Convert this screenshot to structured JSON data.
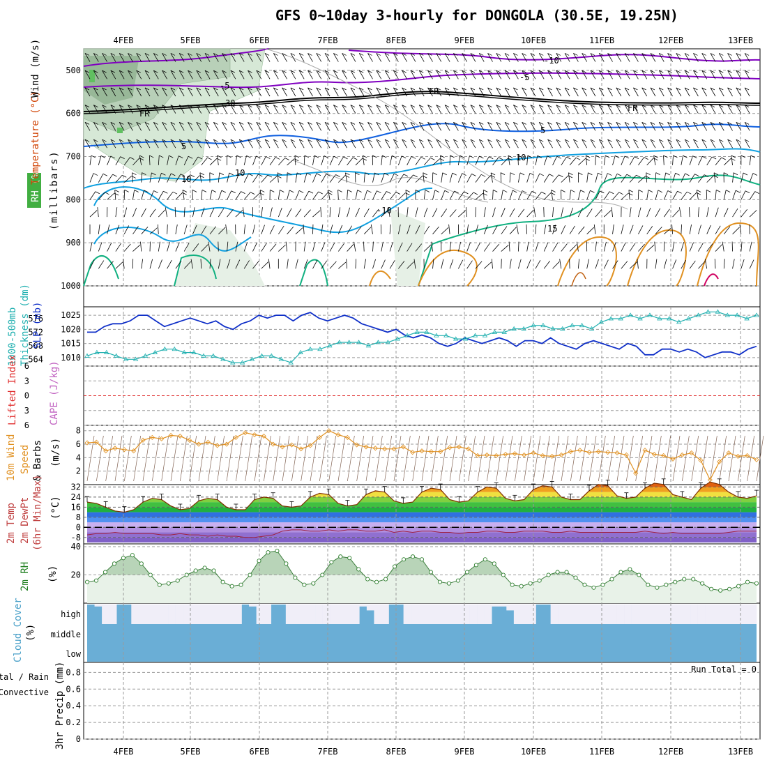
{
  "title": "GFS 0~10day 3-hourly for DONGOLA (30.5E, 19.25N)",
  "dates": [
    "4FEB",
    "5FEB",
    "6FEB",
    "7FEB",
    "8FEB",
    "9FEB",
    "10FEB",
    "11FEB",
    "12FEB",
    "13FEB"
  ],
  "colors": {
    "grid": "#999999",
    "wind_barb": "#000000",
    "fr": "#000000",
    "temp_neg": "#8000c0",
    "temp_pos": "#1060e0",
    "slp": "#1030c8",
    "thk": "#20b0b0",
    "wind10": "#e09020",
    "rh": "#208020",
    "cloud": "#6aaed6",
    "cloud_bg": "#f0eef8"
  },
  "chart_data": [
    {
      "type": "contour",
      "panel": "upper-air",
      "labels": {
        "wind": "Wind (m/s)",
        "temperature": "Temperature (°C)",
        "rh": "RH (%)",
        "y": "(millibars)"
      },
      "yticks": [
        500,
        600,
        700,
        800,
        900,
        1000
      ],
      "contour_labels": [
        {
          "text": "-10",
          "color": "#8000c0"
        },
        {
          "text": "-5",
          "color": "#8000c0"
        },
        {
          "text": "-5",
          "color": "#8000c0"
        },
        {
          "text": "FR",
          "color": "#000000"
        },
        {
          "text": "FR",
          "color": "#000000"
        },
        {
          "text": "FR",
          "color": "#000000"
        },
        {
          "text": "5",
          "color": "#1060e0"
        },
        {
          "text": "5",
          "color": "#1060e0"
        },
        {
          "text": "10",
          "color": "#10a0e0"
        },
        {
          "text": "10",
          "color": "#10a0e0"
        },
        {
          "text": "-10",
          "color": "#10a0e0"
        },
        {
          "text": "15",
          "color": "#10b080"
        },
        {
          "text": "30",
          "color": "#888888"
        },
        {
          "text": "10",
          "color": "#888888"
        }
      ]
    },
    {
      "type": "line",
      "panel": "slp-thickness",
      "labels": {
        "slp": "SLP (mb)",
        "thk": "Thickness (dm)",
        "thk2": "1000-500mb"
      },
      "y_slp_ticks": [
        1010,
        1015,
        1020,
        1025
      ],
      "y_thk_ticks": [
        564,
        568,
        572,
        576
      ],
      "series": [
        {
          "name": "SLP",
          "values": [
            1019,
            1019,
            1021,
            1022,
            1022,
            1023,
            1025,
            1025,
            1023,
            1021,
            1022,
            1023,
            1024,
            1023,
            1022,
            1023,
            1021,
            1020,
            1022,
            1023,
            1025,
            1024,
            1025,
            1025,
            1023,
            1025,
            1026,
            1024,
            1023,
            1024,
            1025,
            1024,
            1022,
            1021,
            1020,
            1019,
            1020,
            1018,
            1017,
            1018,
            1017,
            1015,
            1014,
            1015,
            1017,
            1016,
            1015,
            1016,
            1017,
            1016,
            1014,
            1016,
            1016,
            1015,
            1017,
            1015,
            1014,
            1013,
            1015,
            1016,
            1015,
            1014,
            1013,
            1015,
            1014,
            1011,
            1011,
            1013,
            1013,
            1012,
            1013,
            1012,
            1010,
            1011,
            1012,
            1012,
            1011,
            1013,
            1014
          ]
        },
        {
          "name": "Thickness",
          "values": [
            565,
            566,
            566,
            565,
            564,
            564,
            565,
            566,
            567,
            567,
            566,
            566,
            565,
            565,
            564,
            563,
            563,
            564,
            565,
            565,
            564,
            563,
            566,
            567,
            567,
            568,
            569,
            569,
            569,
            568,
            569,
            569,
            570,
            571,
            572,
            572,
            571,
            571,
            570,
            570,
            571,
            571,
            572,
            572,
            573,
            573,
            574,
            574,
            573,
            573,
            574,
            574,
            573,
            575,
            576,
            576,
            577,
            576,
            577,
            576,
            576,
            575,
            576,
            577,
            578,
            578,
            577,
            577,
            576,
            577
          ]
        }
      ]
    },
    {
      "type": "line",
      "panel": "cape-li",
      "labels": {
        "li": "Lifted Index",
        "cape": "CAPE (J/kg)"
      },
      "yticks": [
        -6,
        -3,
        0,
        3,
        6
      ],
      "series": [
        {
          "name": "Lifted Index",
          "values": [
            0
          ]
        }
      ]
    },
    {
      "type": "line",
      "panel": "wind10m",
      "labels": {
        "a": "10m Wind",
        "b": "Speed",
        "c": "& Barbs",
        "d": "(m/s)"
      },
      "yticks": [
        2,
        4,
        6,
        8
      ],
      "series": [
        {
          "name": "10m Wind Speed",
          "values": [
            6.2,
            6.3,
            5.0,
            5.4,
            5.2,
            5.0,
            6.6,
            7.0,
            6.8,
            7.3,
            7.2,
            6.6,
            6.0,
            6.3,
            5.8,
            6.0,
            7.0,
            7.7,
            7.4,
            7.2,
            6.0,
            5.6,
            5.9,
            5.3,
            5.8,
            7.0,
            8.0,
            7.4,
            7.0,
            5.9,
            5.6,
            5.4,
            5.3,
            5.3,
            5.6,
            4.8,
            5.0,
            4.9,
            4.9,
            5.5,
            5.6,
            5.3,
            4.3,
            4.4,
            4.3,
            4.5,
            4.6,
            4.4,
            4.7,
            4.3,
            4.2,
            4.4,
            4.9,
            5.1,
            4.8,
            4.9,
            4.8,
            4.7,
            4.4,
            1.7,
            5.1,
            4.5,
            4.3,
            3.8,
            4.4,
            4.7,
            3.6,
            0.7,
            3.4,
            4.7,
            4.2,
            4.3,
            3.7
          ]
        }
      ]
    },
    {
      "type": "area",
      "panel": "temp",
      "labels": {
        "a": "2m Temp",
        "b": "2m DewPt",
        "c": "(6hr Min/Max)",
        "d": "(°C)"
      },
      "yticks": [
        -8,
        0,
        8,
        16,
        24,
        32
      ],
      "series": [
        {
          "name": "2m Temp",
          "values": [
            20,
            19,
            16,
            13,
            12,
            14,
            20,
            23,
            22,
            17,
            14,
            15,
            21,
            23,
            22,
            16,
            14,
            14,
            22,
            24,
            23,
            17,
            16,
            17,
            24,
            27,
            26,
            19,
            17,
            18,
            26,
            29,
            28,
            21,
            19,
            20,
            28,
            31,
            30,
            22,
            20,
            21,
            28,
            32,
            31,
            23,
            21,
            22,
            30,
            33,
            32,
            24,
            22,
            22,
            29,
            34,
            33,
            25,
            23,
            24,
            31,
            35,
            34,
            26,
            24,
            22,
            31,
            36,
            34,
            28,
            24,
            23,
            25
          ]
        },
        {
          "name": "2m DewPt",
          "values": [
            -6,
            -5,
            -5,
            -4,
            -5,
            -5,
            -5,
            -5,
            -6,
            -6,
            -5,
            -6,
            -6,
            -7,
            -6,
            -7,
            -7,
            -8,
            -8,
            -7,
            -6,
            -3,
            -2,
            -2,
            -3,
            -3,
            -2,
            -3,
            -2,
            -2,
            -3,
            -3,
            -2,
            -4,
            -3,
            -4,
            -3,
            -3,
            -4,
            -4,
            -5,
            -4,
            -4,
            -3,
            -3,
            -4,
            -4,
            -3,
            -3,
            -3,
            -4,
            -4,
            -3,
            -4,
            -4,
            -4,
            -4,
            -4,
            -4,
            -4,
            -3,
            -4,
            -5,
            -4,
            -5,
            -5,
            -5,
            -5,
            -5,
            -4,
            -3,
            -3,
            -3
          ]
        }
      ]
    },
    {
      "type": "area",
      "panel": "rh2m",
      "labels": {
        "a": "2m RH",
        "b": "(%)"
      },
      "yticks": [
        20,
        40
      ],
      "series": [
        {
          "name": "2m RH",
          "values": [
            15,
            16,
            22,
            28,
            32,
            34,
            28,
            20,
            13,
            14,
            16,
            20,
            23,
            25,
            23,
            15,
            12,
            13,
            20,
            30,
            36,
            37,
            28,
            18,
            13,
            14,
            20,
            29,
            33,
            32,
            24,
            17,
            15,
            17,
            26,
            31,
            33,
            31,
            22,
            15,
            14,
            16,
            22,
            27,
            31,
            28,
            20,
            13,
            12,
            14,
            16,
            20,
            22,
            22,
            18,
            13,
            11,
            13,
            17,
            22,
            24,
            20,
            13,
            11,
            13,
            15,
            17,
            17,
            14,
            10,
            9,
            10,
            12,
            15,
            14
          ]
        }
      ]
    },
    {
      "type": "bar",
      "panel": "cloud",
      "labels": {
        "a": "Cloud Cover",
        "b": "(%)",
        "high": "high",
        "middle": "middle",
        "low": "low"
      },
      "series": [
        {
          "name": "High cloud",
          "values": [
            100,
            90,
            0,
            0,
            100,
            100,
            0,
            0,
            0,
            0,
            0,
            0,
            0,
            0,
            0,
            0,
            0,
            0,
            0,
            0,
            0,
            100,
            90,
            0,
            0,
            100,
            100,
            0,
            0,
            0,
            0,
            0,
            0,
            0,
            0,
            0,
            0,
            90,
            70,
            0,
            0,
            100,
            100,
            0,
            0,
            0,
            0,
            0,
            0,
            0,
            0,
            0,
            0,
            0,
            0,
            90,
            90,
            70,
            0,
            0,
            0,
            100,
            100,
            0,
            0,
            0,
            0,
            0,
            0,
            0,
            0,
            0,
            0,
            0,
            0,
            0,
            0,
            0,
            0,
            0,
            0,
            0,
            0,
            0,
            0,
            0,
            0,
            0,
            0,
            0,
            0
          ]
        }
      ]
    },
    {
      "type": "bar",
      "panel": "precip",
      "labels": {
        "a": "Total / Rain",
        "b": "Convective",
        "c": "3hr Precip (mm)",
        "run": "Run Total = 0"
      },
      "yticks": [
        0,
        0.2,
        0.4,
        0.6,
        0.8
      ],
      "series": [
        {
          "name": "Precip",
          "values": [
            0
          ]
        }
      ]
    }
  ]
}
